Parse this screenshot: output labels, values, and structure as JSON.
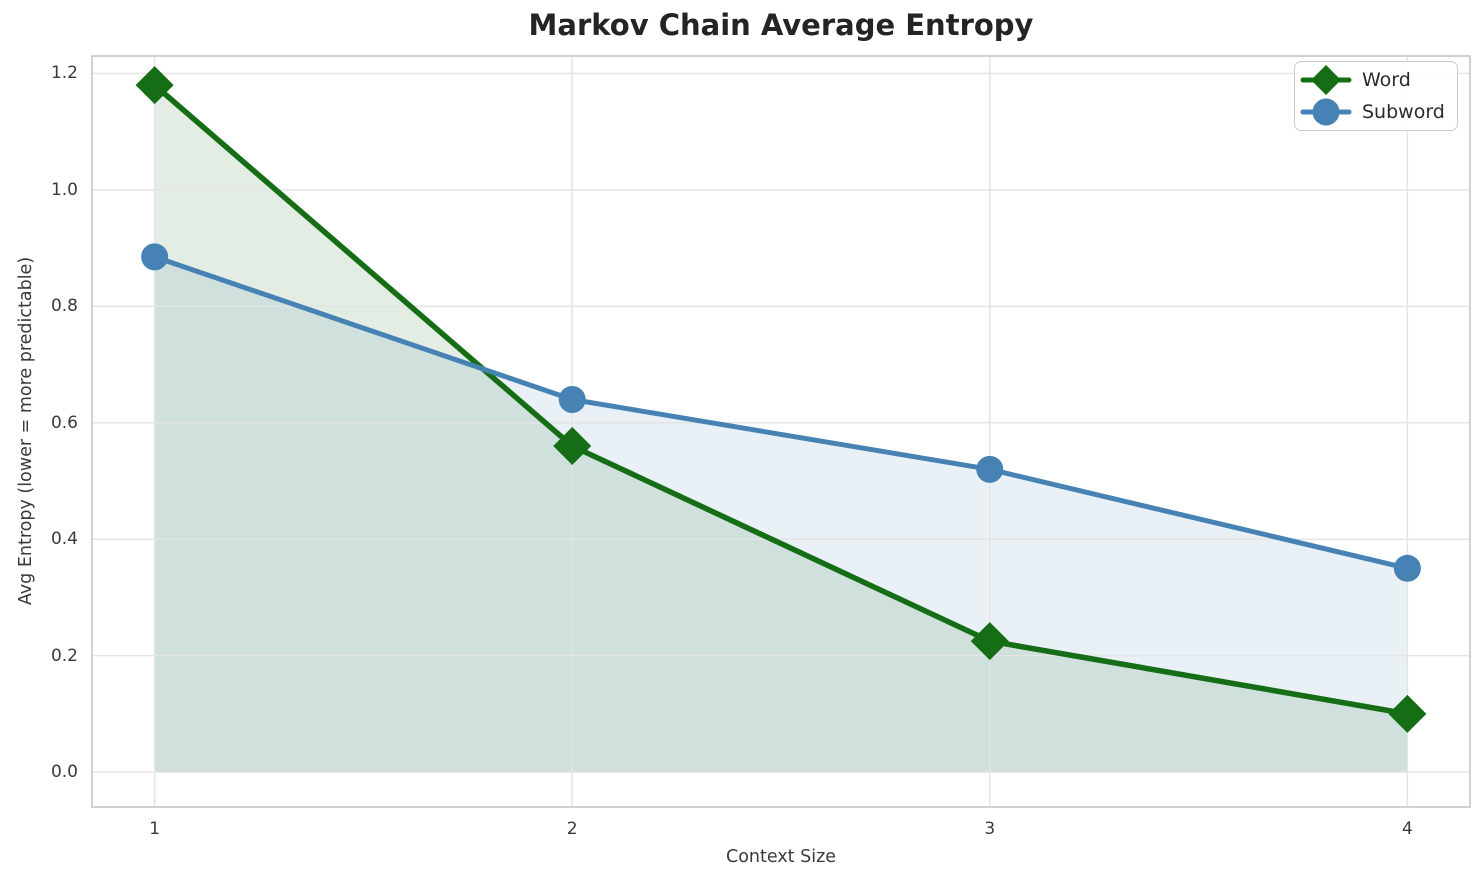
{
  "chart_data": {
    "type": "line",
    "title": "Markov Chain Average Entropy",
    "xlabel": "Context Size",
    "ylabel": "Avg Entropy (lower = more predictable)",
    "x": [
      1,
      2,
      3,
      4
    ],
    "series": [
      {
        "name": "Word",
        "marker": "diamond",
        "color": "#156e15",
        "values": [
          1.18,
          0.56,
          0.225,
          0.1
        ]
      },
      {
        "name": "Subword",
        "marker": "circle",
        "color": "#4682b4",
        "values": [
          0.885,
          0.64,
          0.52,
          0.35
        ]
      }
    ],
    "area_fill_to_zero": true,
    "fill_opacity": 0.12,
    "xticks": [
      1,
      2,
      3,
      4
    ],
    "xtick_labels": [
      "1",
      "2",
      "3",
      "4"
    ],
    "yticks": [
      0,
      0.2,
      0.4,
      0.6,
      0.8,
      1.0,
      1.2
    ],
    "ytick_labels": [
      "0.0",
      "0.2",
      "0.4",
      "0.6",
      "0.8",
      "1.0",
      "1.2"
    ],
    "xlim": [
      0.85,
      4.15
    ],
    "ylim": [
      -0.06,
      1.23
    ],
    "grid": true,
    "legend_position": "upper right",
    "colors": {
      "grid": "#e4e4e4",
      "spine": "#cccccc",
      "tick_text": "#3a3a3a",
      "title_text": "#242424",
      "background": "#ffffff"
    }
  }
}
